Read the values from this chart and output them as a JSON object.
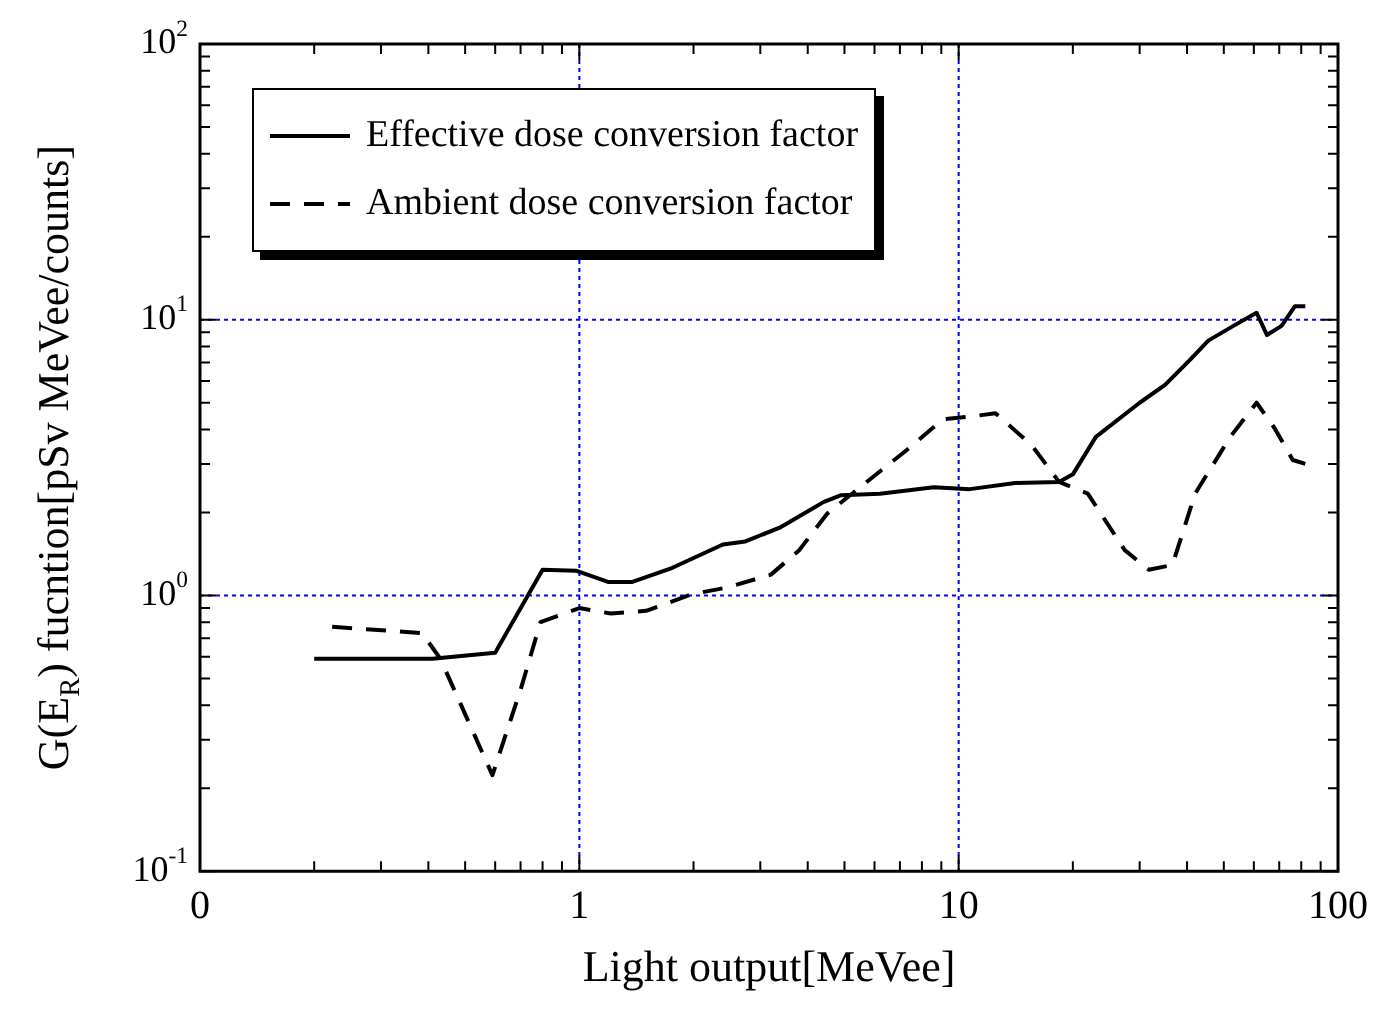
{
  "chart_data": {
    "type": "line",
    "xlabel": "Light output[MeVee]",
    "ylabel": "G(E$_{R}$) fucntion[pSv MeVee/counts]",
    "log": "xy",
    "grid": true,
    "legend": "top left",
    "marker": "none",
    "xlim": [
      0.1,
      100
    ],
    "ylim": [
      0.1,
      100
    ],
    "xticks": [
      {
        "value": 0.1,
        "label": "0"
      },
      {
        "value": 0.2,
        "label": null
      },
      {
        "value": 0.3,
        "label": null
      },
      {
        "value": 0.4,
        "label": null
      },
      {
        "value": 0.5,
        "label": null
      },
      {
        "value": 0.6,
        "label": null
      },
      {
        "value": 0.7,
        "label": null
      },
      {
        "value": 0.8,
        "label": null
      },
      {
        "value": 0.9,
        "label": null
      },
      1,
      {
        "value": 2,
        "label": null
      },
      {
        "value": 3,
        "label": null
      },
      {
        "value": 4,
        "label": null
      },
      {
        "value": 5,
        "label": null
      },
      {
        "value": 6,
        "label": null
      },
      {
        "value": 7,
        "label": null
      },
      {
        "value": 8,
        "label": null
      },
      {
        "value": 9,
        "label": null
      },
      10,
      {
        "value": 20,
        "label": null
      },
      {
        "value": 30,
        "label": null
      },
      {
        "value": 40,
        "label": null
      },
      {
        "value": 50,
        "label": null
      },
      {
        "value": 60,
        "label": null
      },
      {
        "value": 70,
        "label": null
      },
      {
        "value": 80,
        "label": null
      },
      {
        "value": 90,
        "label": null
      },
      100
    ],
    "yticks": [
      {
        "value": 0.1,
        "label": "10$^{-1}$"
      },
      {
        "value": 0.2,
        "label": null
      },
      {
        "value": 0.3,
        "label": null
      },
      {
        "value": 0.4,
        "label": null
      },
      {
        "value": 0.5,
        "label": null
      },
      {
        "value": 0.6,
        "label": null
      },
      {
        "value": 0.7,
        "label": null
      },
      {
        "value": 0.8,
        "label": null
      },
      {
        "value": 0.9,
        "label": null
      },
      {
        "value": 1,
        "label": "10$^{0}$"
      },
      {
        "value": 2,
        "label": null
      },
      {
        "value": 3,
        "label": null
      },
      {
        "value": 4,
        "label": null
      },
      {
        "value": 5,
        "label": null
      },
      {
        "value": 6,
        "label": null
      },
      {
        "value": 7,
        "label": null
      },
      {
        "value": 8,
        "label": null
      },
      {
        "value": 9,
        "label": null
      },
      {
        "value": 10,
        "label": "10$^{1}$"
      },
      {
        "value": 20,
        "label": null
      },
      {
        "value": 30,
        "label": null
      },
      {
        "value": 40,
        "label": null
      },
      {
        "value": 50,
        "label": null
      },
      {
        "value": 60,
        "label": null
      },
      {
        "value": 70,
        "label": null
      },
      {
        "value": 80,
        "label": null
      },
      {
        "value": 90,
        "label": null
      },
      {
        "value": 100,
        "label": "10$^{2}$"
      }
    ],
    "series": [
      {
        "name": "Effective dose conversion factor",
        "color": "#000000",
        "line_style": "solid",
        "x": [
          0.2,
          0.41,
          0.6,
          0.8,
          0.98,
          1.19,
          1.38,
          1.76,
          2.39,
          2.74,
          3.4,
          4.4,
          4.9,
          6.2,
          8.6,
          10.7,
          14.1,
          18.4,
          20,
          23,
          30,
          35,
          40.9,
          45.5,
          53,
          61,
          65,
          71,
          77,
          82
        ],
        "values": [
          0.59,
          0.59,
          0.62,
          1.24,
          1.23,
          1.12,
          1.12,
          1.26,
          1.53,
          1.57,
          1.77,
          2.18,
          2.31,
          2.34,
          2.47,
          2.43,
          2.56,
          2.58,
          2.75,
          3.76,
          5.0,
          5.8,
          7.2,
          8.4,
          9.5,
          10.6,
          8.8,
          9.5,
          11.2,
          11.2
        ]
      },
      {
        "name": "Ambient dose conversion factor",
        "color": "#000000",
        "line_style": "dashed",
        "x": [
          0.223,
          0.385,
          0.43,
          0.59,
          0.7,
          0.79,
          1.0,
          1.21,
          1.5,
          1.98,
          2.46,
          3.2,
          3.8,
          4.5,
          5.6,
          7.3,
          9.1,
          10.7,
          12.5,
          15.6,
          18.4,
          21.9,
          27.4,
          31.7,
          36.6,
          42,
          52,
          61,
          68,
          76,
          82
        ],
        "values": [
          0.77,
          0.73,
          0.59,
          0.223,
          0.455,
          0.8,
          0.9,
          0.86,
          0.88,
          1.01,
          1.07,
          1.19,
          1.46,
          1.98,
          2.52,
          3.37,
          4.36,
          4.45,
          4.58,
          3.5,
          2.58,
          2.34,
          1.46,
          1.24,
          1.29,
          2.34,
          3.76,
          5.0,
          4.05,
          3.1,
          3.0
        ]
      }
    ]
  }
}
